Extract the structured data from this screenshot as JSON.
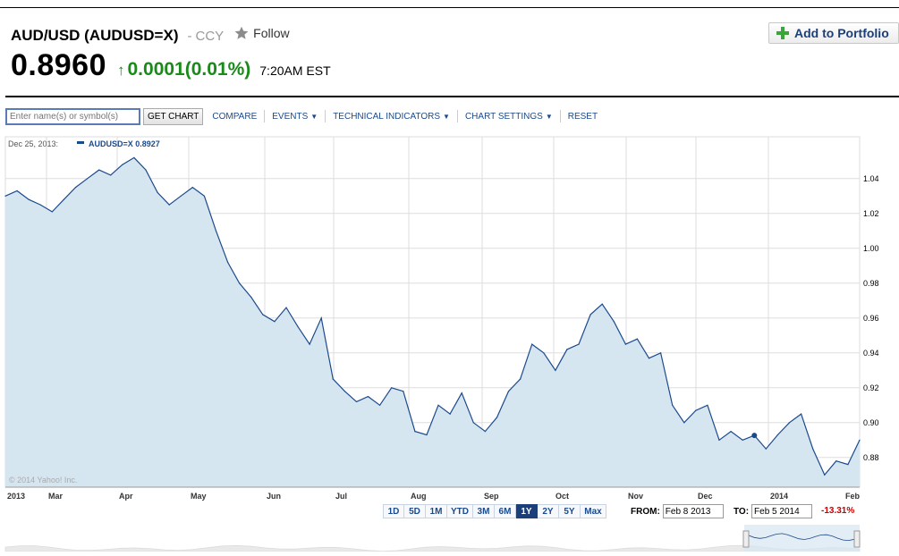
{
  "header": {
    "title": "AUD/USD (AUDUSD=X)",
    "separator": "-",
    "category": "CCY",
    "follow_label": "Follow",
    "price": "0.8960",
    "change": "0.0001(0.01%)",
    "time": "7:20AM EST",
    "add_portfolio_label": "Add to Portfolio"
  },
  "toolbar": {
    "search_placeholder": "Enter name(s) or symbol(s)",
    "get_chart_label": "GET CHART",
    "compare_label": "COMPARE",
    "events_label": "EVENTS",
    "technical_label": "TECHNICAL INDICATORS",
    "settings_label": "CHART SETTINGS",
    "reset_label": "RESET"
  },
  "legend": {
    "date": "Dec 25, 2013:",
    "series": "AUDUSD=X 0.8927"
  },
  "copyright": "© 2014 Yahoo! Inc.",
  "range": {
    "buttons": [
      "1D",
      "5D",
      "1M",
      "YTD",
      "3M",
      "6M",
      "1Y",
      "2Y",
      "5Y",
      "Max"
    ],
    "active": "1Y",
    "from_label": "FROM:",
    "from_value": "Feb 8 2013",
    "to_label": "TO:",
    "to_value": "Feb 5 2014",
    "pct_change": "-13.31%"
  },
  "colors": {
    "line": "#1b4a8c",
    "fill": "#d6e6f1",
    "grid": "#dddddd",
    "positive": "#1a8a1a",
    "negative": "#cc0000"
  },
  "chart_data": {
    "type": "area",
    "xlabel": "",
    "ylabel": "",
    "ylim": [
      0.863,
      1.064
    ],
    "yticks": [
      "1.04",
      "1.02",
      "1.00",
      "0.98",
      "0.96",
      "0.94",
      "0.92",
      "0.90",
      "0.88"
    ],
    "xticks": [
      "2013",
      "Mar",
      "Apr",
      "May",
      "Jun",
      "Jul",
      "Aug",
      "Sep",
      "Oct",
      "Nov",
      "Dec",
      "2014",
      "Feb"
    ],
    "grid": true,
    "legend_position": "top-left",
    "marker": {
      "date": "Dec 25, 2013",
      "value": 0.8927
    },
    "series": [
      {
        "name": "AUDUSD=X",
        "x": [
          "Feb 8",
          "Feb 13",
          "Feb 18",
          "Feb 23",
          "Feb 28",
          "Mar 5",
          "Mar 10",
          "Mar 15",
          "Mar 20",
          "Mar 25",
          "Mar 30",
          "Apr 4",
          "Apr 9",
          "Apr 14",
          "Apr 19",
          "Apr 24",
          "Apr 29",
          "May 4",
          "May 9",
          "May 14",
          "May 19",
          "May 24",
          "May 29",
          "Jun 3",
          "Jun 8",
          "Jun 13",
          "Jun 18",
          "Jun 23",
          "Jun 28",
          "Jul 3",
          "Jul 8",
          "Jul 13",
          "Jul 18",
          "Jul 23",
          "Jul 28",
          "Aug 2",
          "Aug 7",
          "Aug 12",
          "Aug 17",
          "Aug 22",
          "Aug 27",
          "Sep 1",
          "Sep 6",
          "Sep 11",
          "Sep 16",
          "Sep 21",
          "Sep 26",
          "Oct 1",
          "Oct 6",
          "Oct 11",
          "Oct 16",
          "Oct 21",
          "Oct 26",
          "Oct 31",
          "Nov 5",
          "Nov 10",
          "Nov 15",
          "Nov 20",
          "Nov 25",
          "Nov 30",
          "Dec 5",
          "Dec 10",
          "Dec 15",
          "Dec 20",
          "Dec 25",
          "Dec 30",
          "Jan 4",
          "Jan 9",
          "Jan 14",
          "Jan 19",
          "Jan 24",
          "Jan 29",
          "Feb 3",
          "Feb 5"
        ],
        "values": [
          1.03,
          1.033,
          1.028,
          1.025,
          1.021,
          1.028,
          1.035,
          1.04,
          1.045,
          1.042,
          1.048,
          1.052,
          1.045,
          1.032,
          1.025,
          1.03,
          1.035,
          1.03,
          1.01,
          0.992,
          0.98,
          0.972,
          0.962,
          0.958,
          0.966,
          0.955,
          0.945,
          0.96,
          0.925,
          0.918,
          0.912,
          0.915,
          0.91,
          0.92,
          0.918,
          0.895,
          0.893,
          0.91,
          0.905,
          0.917,
          0.9,
          0.895,
          0.903,
          0.918,
          0.925,
          0.945,
          0.94,
          0.93,
          0.942,
          0.945,
          0.962,
          0.968,
          0.958,
          0.945,
          0.948,
          0.937,
          0.94,
          0.91,
          0.9,
          0.907,
          0.91,
          0.89,
          0.895,
          0.89,
          0.8927,
          0.885,
          0.893,
          0.9,
          0.905,
          0.885,
          0.87,
          0.878,
          0.876,
          0.89
        ]
      }
    ]
  }
}
